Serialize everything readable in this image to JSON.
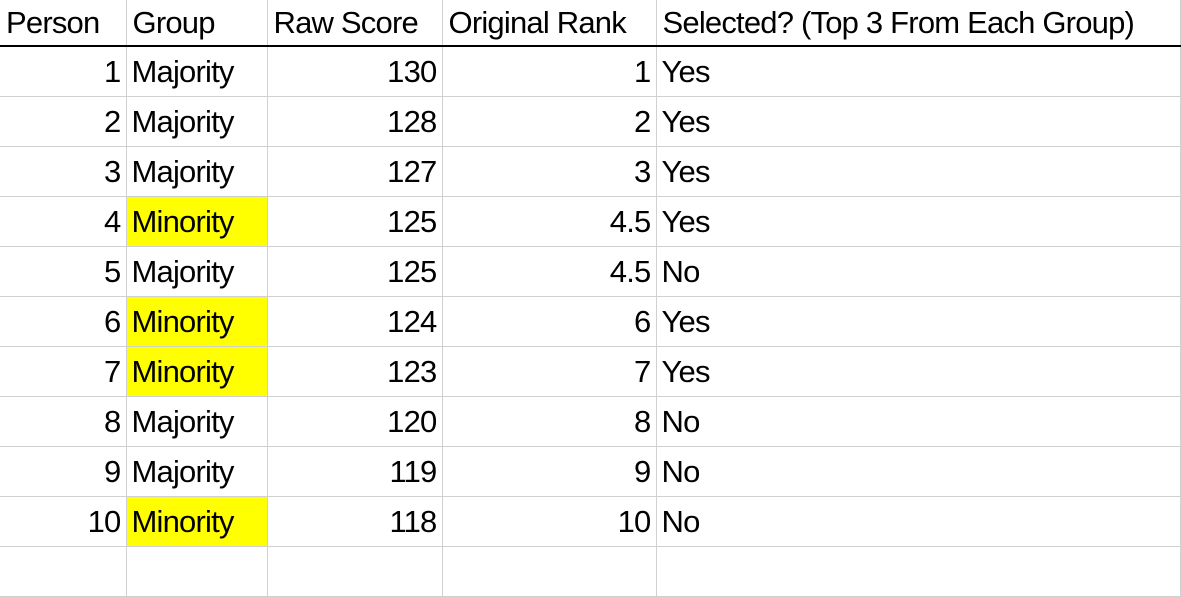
{
  "headers": [
    "Person",
    "Group",
    "Raw Score",
    "Original Rank",
    "Selected? (Top 3 From Each Group)"
  ],
  "highlight_color": "#ffff00",
  "rows": [
    {
      "person": "1",
      "group": "Majority",
      "score": "130",
      "rank": "1",
      "selected": "Yes",
      "highlight": false
    },
    {
      "person": "2",
      "group": "Majority",
      "score": "128",
      "rank": "2",
      "selected": "Yes",
      "highlight": false
    },
    {
      "person": "3",
      "group": "Majority",
      "score": "127",
      "rank": "3",
      "selected": "Yes",
      "highlight": false
    },
    {
      "person": "4",
      "group": "Minority",
      "score": "125",
      "rank": "4.5",
      "selected": "Yes",
      "highlight": true
    },
    {
      "person": "5",
      "group": "Majority",
      "score": "125",
      "rank": "4.5",
      "selected": "No",
      "highlight": false
    },
    {
      "person": "6",
      "group": "Minority",
      "score": "124",
      "rank": "6",
      "selected": "Yes",
      "highlight": true
    },
    {
      "person": "7",
      "group": "Minority",
      "score": "123",
      "rank": "7",
      "selected": "Yes",
      "highlight": true
    },
    {
      "person": "8",
      "group": "Majority",
      "score": "120",
      "rank": "8",
      "selected": "No",
      "highlight": false
    },
    {
      "person": "9",
      "group": "Majority",
      "score": "119",
      "rank": "9",
      "selected": "No",
      "highlight": false
    },
    {
      "person": "10",
      "group": "Minority",
      "score": "118",
      "rank": "10",
      "selected": "No",
      "highlight": true
    }
  ]
}
